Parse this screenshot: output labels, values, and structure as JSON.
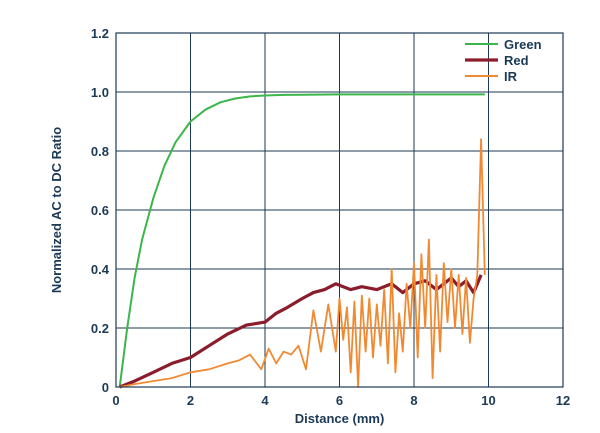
{
  "chart_data": {
    "type": "line",
    "title": "",
    "xlabel": "Distance (mm)",
    "ylabel": "Normalized AC to DC Ratio",
    "xlim": [
      0,
      12
    ],
    "ylim": [
      0,
      1.2
    ],
    "xticks": [
      0,
      2,
      4,
      6,
      8,
      10,
      12
    ],
    "yticks": [
      0,
      0.2,
      0.4,
      0.6,
      0.8,
      1.0,
      1.2
    ],
    "xtick_labels": [
      "0",
      "2",
      "4",
      "6",
      "8",
      "10",
      "12"
    ],
    "ytick_labels": [
      "0",
      "0.2",
      "0.4",
      "0.6",
      "0.8",
      "1.0",
      "1.2"
    ],
    "grid": true,
    "legend_position": "top-right",
    "series": [
      {
        "name": "Green",
        "color": "#3cb54a",
        "x": [
          0.1,
          0.3,
          0.5,
          0.7,
          1.0,
          1.3,
          1.6,
          2.0,
          2.4,
          2.8,
          3.2,
          3.6,
          4.0,
          4.5,
          5.0,
          6.0,
          7.0,
          8.0,
          9.0,
          9.9
        ],
        "y": [
          0.0,
          0.2,
          0.37,
          0.5,
          0.64,
          0.75,
          0.83,
          0.9,
          0.94,
          0.965,
          0.978,
          0.985,
          0.988,
          0.99,
          0.991,
          0.992,
          0.992,
          0.992,
          0.992,
          0.992
        ]
      },
      {
        "name": "Red",
        "color": "#8a1c2b",
        "x": [
          0.1,
          0.5,
          1.0,
          1.5,
          2.0,
          2.5,
          3.0,
          3.5,
          4.0,
          4.3,
          4.6,
          5.0,
          5.3,
          5.6,
          5.9,
          6.1,
          6.3,
          6.6,
          7.0,
          7.4,
          7.7,
          8.0,
          8.3,
          8.6,
          9.0,
          9.2,
          9.4,
          9.6,
          9.8
        ],
        "y": [
          0.0,
          0.02,
          0.05,
          0.08,
          0.1,
          0.14,
          0.18,
          0.21,
          0.22,
          0.25,
          0.27,
          0.3,
          0.32,
          0.33,
          0.35,
          0.34,
          0.33,
          0.34,
          0.33,
          0.35,
          0.32,
          0.35,
          0.36,
          0.33,
          0.37,
          0.34,
          0.36,
          0.32,
          0.38
        ]
      },
      {
        "name": "IR",
        "color": "#f08a32",
        "x": [
          0.1,
          0.5,
          1.0,
          1.5,
          2.0,
          2.5,
          3.0,
          3.3,
          3.6,
          3.9,
          4.1,
          4.3,
          4.5,
          4.7,
          4.9,
          5.1,
          5.3,
          5.5,
          5.7,
          5.9,
          6.0,
          6.1,
          6.2,
          6.3,
          6.4,
          6.5,
          6.6,
          6.7,
          6.8,
          6.9,
          7.0,
          7.1,
          7.2,
          7.3,
          7.4,
          7.5,
          7.6,
          7.7,
          7.8,
          7.9,
          8.0,
          8.1,
          8.2,
          8.3,
          8.4,
          8.5,
          8.6,
          8.7,
          8.8,
          8.9,
          9.0,
          9.1,
          9.2,
          9.3,
          9.4,
          9.5,
          9.6,
          9.7,
          9.8,
          9.9
        ],
        "y": [
          0.0,
          0.01,
          0.02,
          0.03,
          0.05,
          0.06,
          0.08,
          0.09,
          0.11,
          0.06,
          0.13,
          0.08,
          0.12,
          0.11,
          0.14,
          0.06,
          0.26,
          0.12,
          0.28,
          0.12,
          0.3,
          0.16,
          0.27,
          0.05,
          0.29,
          0.0,
          0.31,
          0.12,
          0.3,
          0.1,
          0.28,
          0.14,
          0.33,
          0.08,
          0.4,
          0.05,
          0.25,
          0.12,
          0.35,
          0.2,
          0.42,
          0.1,
          0.45,
          0.2,
          0.5,
          0.03,
          0.38,
          0.12,
          0.42,
          0.22,
          0.4,
          0.2,
          0.38,
          0.18,
          0.37,
          0.15,
          0.3,
          0.38,
          0.84,
          0.38
        ]
      }
    ]
  }
}
